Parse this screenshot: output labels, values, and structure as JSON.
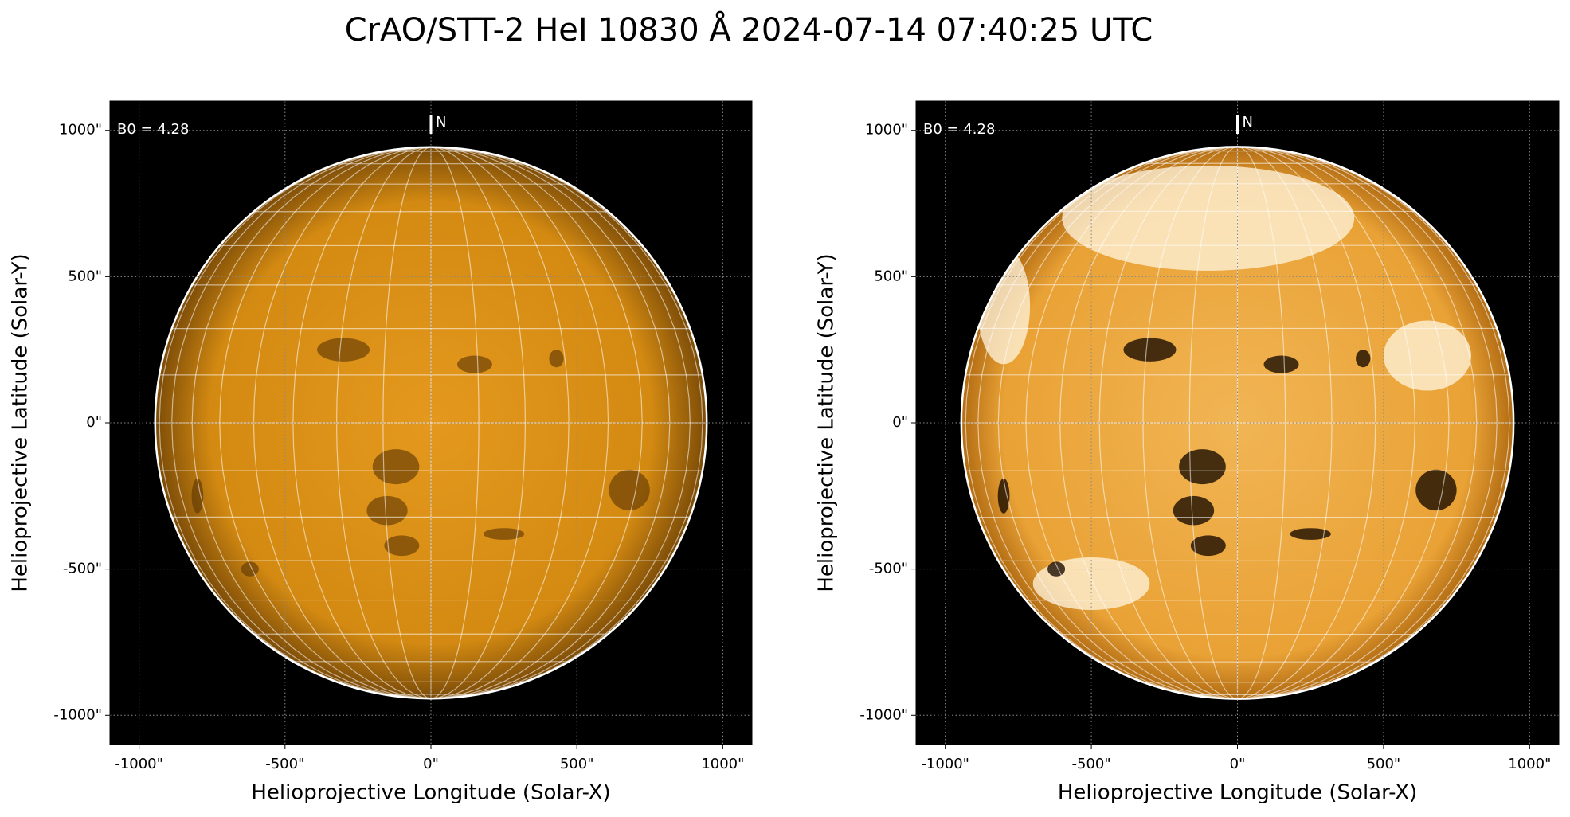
{
  "title": "CrAO/STT-2 HeI 10830 Å 2024-07-14 07:40:25 UTC",
  "chart_data": [
    {
      "type": "image",
      "annotation": "B0 = 4.28",
      "north_label": "N",
      "x_label": "Helioprojective Longitude (Solar-X)",
      "y_label": "Helioprojective Latitude (Solar-Y)",
      "xlim": [
        -1100,
        1100
      ],
      "ylim": [
        -1100,
        1100
      ],
      "xticks": [
        {
          "value": -1000,
          "label": "-1000\""
        },
        {
          "value": -500,
          "label": "-500\""
        },
        {
          "value": 0,
          "label": "0\""
        },
        {
          "value": 500,
          "label": "500\""
        },
        {
          "value": 1000,
          "label": "1000\""
        }
      ],
      "yticks": [
        {
          "value": -1000,
          "label": "-1000\""
        },
        {
          "value": -500,
          "label": "-500\""
        },
        {
          "value": 0,
          "label": "0\""
        },
        {
          "value": 500,
          "label": "500\""
        },
        {
          "value": 1000,
          "label": "1000\""
        }
      ],
      "grid": true,
      "limb_radius": 945,
      "color": "#d98c10"
    },
    {
      "type": "image",
      "annotation": "B0 = 4.28",
      "north_label": "N",
      "x_label": "Helioprojective Longitude (Solar-X)",
      "y_label": "Helioprojective Latitude (Solar-Y)",
      "xlim": [
        -1100,
        1100
      ],
      "ylim": [
        -1100,
        1100
      ],
      "xticks": [
        {
          "value": -1000,
          "label": "-1000\""
        },
        {
          "value": -500,
          "label": "-500\""
        },
        {
          "value": 0,
          "label": "0\""
        },
        {
          "value": 500,
          "label": "500\""
        },
        {
          "value": 1000,
          "label": "1000\""
        }
      ],
      "yticks": [
        {
          "value": -1000,
          "label": "-1000\""
        },
        {
          "value": -500,
          "label": "-500\""
        },
        {
          "value": 0,
          "label": "0\""
        },
        {
          "value": 500,
          "label": "500\""
        },
        {
          "value": 1000,
          "label": "1000\""
        }
      ],
      "grid": true,
      "limb_radius": 945,
      "color": "#eaa53a"
    }
  ]
}
